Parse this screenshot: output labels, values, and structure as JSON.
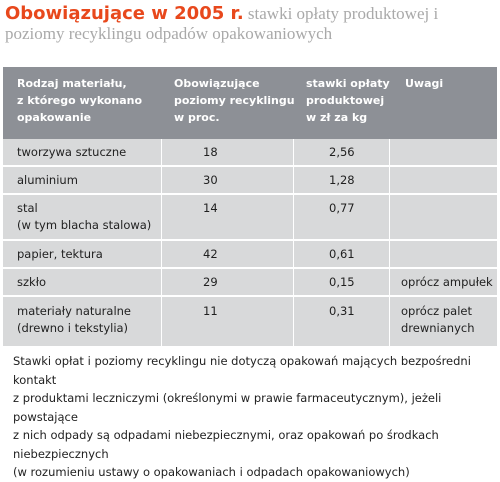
{
  "title": {
    "strong": "Obowiązujące w 2005 r.",
    "rest": " stawki opłaty produktowej i poziomy recyklingu odpadów opakowaniowych"
  },
  "table": {
    "headers": [
      "Rodzaj materiału,\nz którego wykonano\nopakowanie",
      "Obowiązujące\npoziomy recyklingu\nw proc.",
      "stawki opłaty\nproduktowej\nw zł za kg",
      "Uwagi"
    ],
    "rows": [
      {
        "material": "tworzywa sztuczne",
        "recycling": "18",
        "rate": "2,56",
        "notes": ""
      },
      {
        "material": "aluminium",
        "recycling": "30",
        "rate": "1,28",
        "notes": ""
      },
      {
        "material": "stal\n(w tym blacha stalowa)",
        "recycling": "14",
        "rate": "0,77",
        "notes": ""
      },
      {
        "material": "papier, tektura",
        "recycling": "42",
        "rate": "0,61",
        "notes": ""
      },
      {
        "material": "szkło",
        "recycling": "29",
        "rate": "0,15",
        "notes": "oprócz ampułek"
      },
      {
        "material": "materiały naturalne\n(drewno i tekstylia)",
        "recycling": "11",
        "rate": "0,31",
        "notes": "oprócz palet\ndrewnianych"
      }
    ]
  },
  "note": "Stawki opłat i poziomy recyklingu nie dotyczą opakowań mających bezpośredni kontakt\nz  produktami leczniczymi (określonymi w prawie farmaceutycznym), jeżeli powstające\nz  nich odpady są odpadami niebezpiecznymi, oraz opakowań po środkach niebezpiecznych\n(w rozumieniu ustawy o opakowaniach i odpadach opakowaniowych)"
}
